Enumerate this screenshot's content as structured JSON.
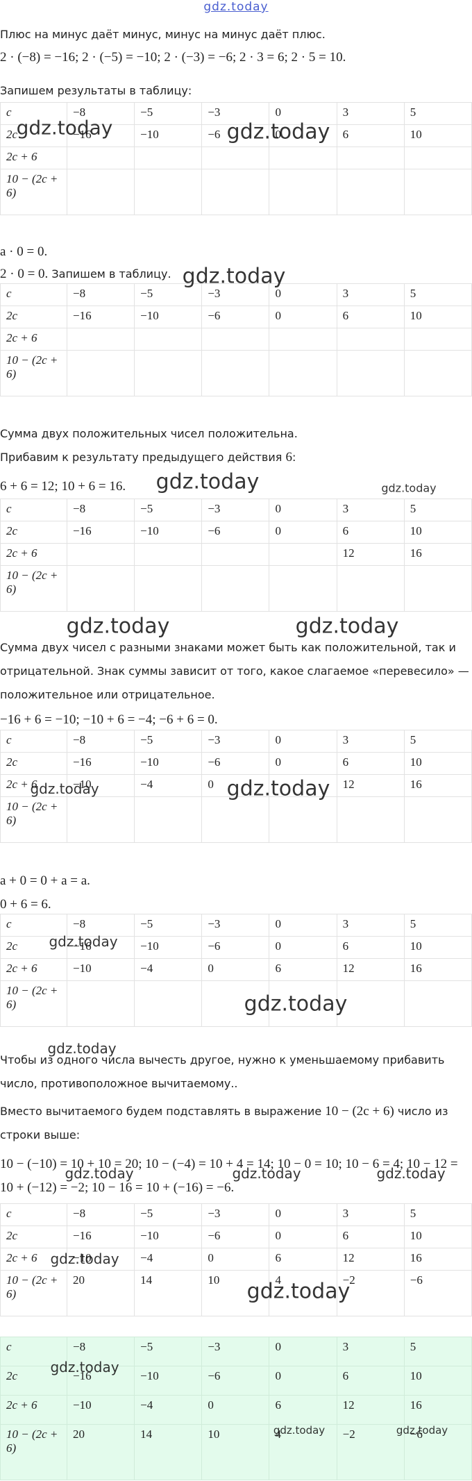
{
  "header": {
    "site": "gdz.today"
  },
  "watermark": "gdz.today",
  "blocks": [
    {
      "spans": [
        {
          "text": "Плюс на минус даёт минус, минус на минус даёт плюс."
        }
      ]
    },
    {
      "spans": [
        {
          "math": "2 · (−8) = −16; 2 · (−5) = −10; 2 · (−3) = −6; 2 · 3 = 6; 2 · 5 = 10."
        }
      ]
    },
    {
      "spans": [
        {
          "text": "Запишем результаты в таблицу:"
        }
      ]
    },
    {
      "rows": [
        [
          "c",
          "−8",
          "−5",
          "−3",
          "0",
          "3",
          "5"
        ],
        [
          "2c",
          "−16",
          "−10",
          "−6",
          "0",
          "6",
          "10"
        ],
        [
          "2c + 6",
          null,
          null,
          null,
          null,
          null,
          null
        ],
        [
          "10 − (2c + 6)",
          null,
          null,
          null,
          null,
          null,
          null
        ]
      ]
    },
    {
      "spans": [
        {
          "math": "a · 0 = 0."
        }
      ]
    },
    {
      "spans": [
        {
          "math": "2 · 0 = 0."
        },
        {
          "text": " Запишем в таблицу."
        }
      ]
    },
    {
      "rows": [
        [
          "c",
          "−8",
          "−5",
          "−3",
          "0",
          "3",
          "5"
        ],
        [
          "2c",
          "−16",
          "−10",
          "−6",
          "0",
          "6",
          "10"
        ],
        [
          "2c + 6",
          null,
          null,
          null,
          null,
          null,
          null
        ],
        [
          "10 − (2c + 6)",
          null,
          null,
          null,
          null,
          null,
          null
        ]
      ]
    },
    {
      "spans": [
        {
          "text": "Сумма двух положительных чисел положительна."
        }
      ]
    },
    {
      "spans": [
        {
          "text": "Прибавим к результату предыдущего действия "
        },
        {
          "math": "6"
        },
        {
          "text": ":"
        }
      ]
    },
    {
      "spans": [
        {
          "math": "6 + 6 = 12; 10 + 6 = 16."
        }
      ]
    },
    {
      "rows": [
        [
          "c",
          "−8",
          "−5",
          "−3",
          "0",
          "3",
          "5"
        ],
        [
          "2c",
          "−16",
          "−10",
          "−6",
          "0",
          "6",
          "10"
        ],
        [
          "2c + 6",
          null,
          null,
          null,
          null,
          "12",
          "16"
        ],
        [
          "10 − (2c + 6)",
          null,
          null,
          null,
          null,
          null,
          null
        ]
      ]
    },
    {
      "spans": [
        {
          "text": "Сумма двух чисел с разными знаками может быть как положительной, так и отрицательной. Знак суммы зависит от того, какое слагаемое «перевесило» — положительное или отрицательное."
        }
      ]
    },
    {
      "spans": [
        {
          "math": "−16 + 6 = −10; −10 + 6 = −4; −6 + 6 = 0."
        }
      ]
    },
    {
      "rows": [
        [
          "c",
          "−8",
          "−5",
          "−3",
          "0",
          "3",
          "5"
        ],
        [
          "2c",
          "−16",
          "−10",
          "−6",
          "0",
          "6",
          "10"
        ],
        [
          "2c + 6",
          "−10",
          "−4",
          "0",
          null,
          "12",
          "16"
        ],
        [
          "10 − (2c + 6)",
          null,
          null,
          null,
          null,
          null,
          null
        ]
      ]
    },
    {
      "spans": [
        {
          "math": "a + 0 = 0 + a = a."
        }
      ]
    },
    {
      "spans": [
        {
          "math": "0 + 6 = 6."
        }
      ]
    },
    {
      "rows": [
        [
          "c",
          "−8",
          "−5",
          "−3",
          "0",
          "3",
          "5"
        ],
        [
          "2c",
          "−16",
          "−10",
          "−6",
          "0",
          "6",
          "10"
        ],
        [
          "2c + 6",
          "−10",
          "−4",
          "0",
          "6",
          "12",
          "16"
        ],
        [
          "10 − (2c + 6)",
          null,
          null,
          null,
          null,
          null,
          null
        ]
      ]
    },
    {
      "spans": [
        {
          "text": "Чтобы из одного числа вычесть другое, нужно к уменьшаемому прибавить число, противоположное вычитаемому.."
        }
      ]
    },
    {
      "spans": [
        {
          "text": "Вместо вычитаемого будем подставлять в выражение "
        },
        {
          "math": "10 − (2c + 6)"
        },
        {
          "text": " число из строки выше:"
        }
      ]
    },
    {
      "spans": [
        {
          "math": "10 − (−10) = 10 + 10 = 20; 10 − (−4) = 10 + 4 = 14; 10 − 0 = 10; 10 − 6 = 4; 10 − 12 = 10 + (−12) = −2; 10 − 16 = 10 + (−16) = −6."
        }
      ]
    },
    {
      "rows": [
        [
          "c",
          "−8",
          "−5",
          "−3",
          "0",
          "3",
          "5"
        ],
        [
          "2c",
          "−16",
          "−10",
          "−6",
          "0",
          "6",
          "10"
        ],
        [
          "2c + 6",
          "−10",
          "−4",
          "0",
          "6",
          "12",
          "16"
        ],
        [
          "10 − (2c + 6)",
          "20",
          "14",
          "10",
          "4",
          "−2",
          "−6"
        ]
      ]
    },
    {
      "rows": [
        [
          "c",
          "−8",
          "−5",
          "−3",
          "0",
          "3",
          "5"
        ],
        [
          "2c",
          "−16",
          "−10",
          "−6",
          "0",
          "6",
          "10"
        ],
        [
          "2c + 6",
          "−10",
          "−4",
          "0",
          "6",
          "12",
          "16"
        ],
        [
          "10 − (2c + 6)",
          "20",
          "14",
          "10",
          "4",
          "−2",
          "−6"
        ]
      ]
    }
  ]
}
